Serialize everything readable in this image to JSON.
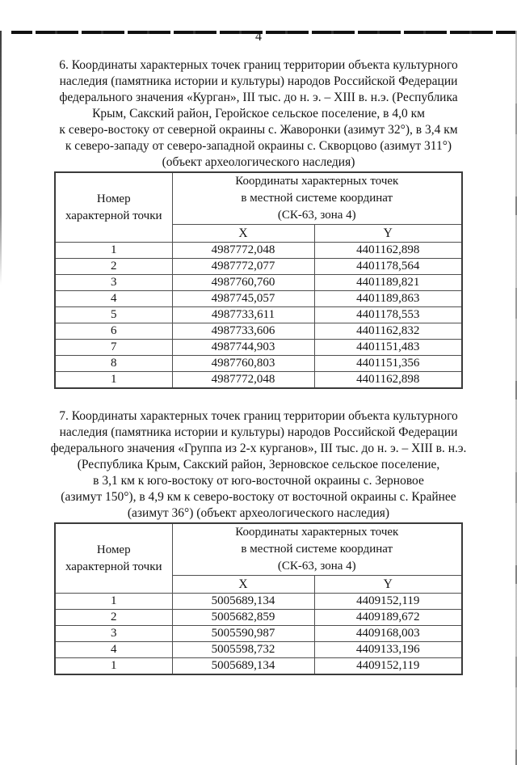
{
  "page_number": "4",
  "sections": [
    {
      "number": "6",
      "heading_lines": [
        "6. Координаты характерных точек границ территории объекта культурного",
        "наследия (памятника истории и культуры) народов Российской Федерации",
        "федерального значения «Курган», III тыс. до н. э. – XIII в. н.э. (Республика",
        "Крым, Сакский район, Геройское сельское поселение, в 4,0 км",
        "к северо-востоку от северной окраины с. Жаворонки (азимут 32°), в 3,4 км",
        "к северо-западу от северо-западной окраины с. Скворцово (азимут 311°)",
        "(объект археологического наследия)"
      ],
      "table": {
        "point_header_lines": [
          "Номер",
          "характерной точки"
        ],
        "coords_header_lines": [
          "Координаты характерных точек",
          "в местной системе координат",
          "(СК-63, зона 4)"
        ],
        "x_label": "X",
        "y_label": "Y",
        "rows": [
          [
            "1",
            "4987772,048",
            "4401162,898"
          ],
          [
            "2",
            "4987772,077",
            "4401178,564"
          ],
          [
            "3",
            "4987760,760",
            "4401189,821"
          ],
          [
            "4",
            "4987745,057",
            "4401189,863"
          ],
          [
            "5",
            "4987733,611",
            "4401178,553"
          ],
          [
            "6",
            "4987733,606",
            "4401162,832"
          ],
          [
            "7",
            "4987744,903",
            "4401151,483"
          ],
          [
            "8",
            "4987760,803",
            "4401151,356"
          ],
          [
            "1",
            "4987772,048",
            "4401162,898"
          ]
        ]
      }
    },
    {
      "number": "7",
      "heading_lines": [
        "7. Координаты характерных точек границ территории объекта культурного",
        "наследия (памятника истории и культуры) народов Российской Федерации",
        "федерального значения «Группа из 2-х курганов», III тыс. до н. э. – XIII в. н.э.",
        "(Республика Крым, Сакский район, Зерновское сельское поселение,",
        "в 3,1 км к юго-востоку от юго-восточной окраины с. Зерновое",
        "(азимут 150°), в 4,9 км к северо-востоку от восточной окраины с. Крайнее",
        "(азимут 36°) (объект археологического наследия)"
      ],
      "table": {
        "point_header_lines": [
          "Номер",
          "характерной точки"
        ],
        "coords_header_lines": [
          "Координаты характерных точек",
          "в местной системе координат",
          "(СК-63, зона 4)"
        ],
        "x_label": "X",
        "y_label": "Y",
        "rows": [
          [
            "1",
            "5005689,134",
            "4409152,119"
          ],
          [
            "2",
            "5005682,859",
            "4409189,672"
          ],
          [
            "3",
            "5005590,987",
            "4409168,003"
          ],
          [
            "4",
            "5005598,732",
            "4409133,196"
          ],
          [
            "1",
            "5005689,134",
            "4409152,119"
          ]
        ]
      }
    }
  ]
}
